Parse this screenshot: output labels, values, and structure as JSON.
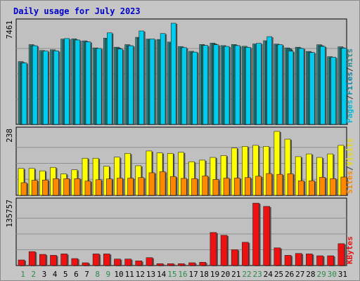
{
  "chart_data": {
    "type": "bar",
    "title": "Daily usage for July 2023",
    "categories": [
      "1",
      "2",
      "3",
      "4",
      "5",
      "6",
      "7",
      "8",
      "9",
      "10",
      "11",
      "12",
      "13",
      "14",
      "15",
      "16",
      "17",
      "18",
      "19",
      "20",
      "21",
      "22",
      "23",
      "24",
      "25",
      "26",
      "27",
      "28",
      "29",
      "30",
      "31"
    ],
    "weekend_days": [
      "1",
      "2",
      "8",
      "9",
      "15",
      "16",
      "22",
      "23",
      "29",
      "30"
    ],
    "panels": [
      {
        "name": "pages-files-hits",
        "ymax_label": "7461",
        "ylim": [
          0,
          7461
        ],
        "legend": [
          "Pages",
          "/",
          "Files",
          "/",
          "Hits"
        ],
        "series": [
          {
            "name": "Pages",
            "values": [
              4630,
              5880,
              5450,
              5500,
              6290,
              6310,
              6160,
              5640,
              6360,
              5690,
              5880,
              6420,
              6290,
              6260,
              6070,
              5740,
              5390,
              5890,
              5990,
              5810,
              5890,
              5760,
              5930,
              6170,
              5920,
              5640,
              5690,
              5380,
              5870,
              4990,
              5720
            ],
            "color": "#2e8b8b"
          },
          {
            "name": "Files",
            "values": [
              4550,
              5800,
              5350,
              5410,
              6210,
              6230,
              6080,
              5560,
              6300,
              5620,
              5800,
              6350,
              6220,
              6180,
              5990,
              5650,
              5310,
              5820,
              5920,
              5730,
              5820,
              5680,
              5860,
              6090,
              5850,
              5570,
              5610,
              5310,
              5800,
              4910,
              5640
            ],
            "color": "#1a6a6a"
          },
          {
            "name": "Hits",
            "values": [
              4530,
              5800,
              5410,
              5420,
              6330,
              6220,
              6080,
              5600,
              6750,
              5550,
              5800,
              6890,
              6300,
              6700,
              7461,
              5660,
              5330,
              5820,
              5870,
              5750,
              5810,
              5680,
              5980,
              6470,
              5880,
              5400,
              5600,
              5300,
              5750,
              4950,
              5620
            ],
            "color": "#00ccee"
          }
        ]
      },
      {
        "name": "sites-visits",
        "ymax_label": "238",
        "ylim": [
          0,
          238
        ],
        "legend": [
          "Sites",
          "/",
          "Visits"
        ],
        "series": [
          {
            "name": "Visits",
            "values": [
              100,
              100,
              91,
              104,
              80,
              95,
              138,
              138,
              108,
              142,
              156,
              110,
              165,
              158,
              156,
              160,
              125,
              131,
              141,
              148,
              176,
              182,
              186,
              182,
              238,
              209,
              144,
              154,
              141,
              154,
              186
            ],
            "color": "#ffff00"
          },
          {
            "name": "Sites",
            "values": [
              47,
              56,
              57,
              62,
              62,
              62,
              53,
              58,
              61,
              64,
              64,
              66,
              84,
              88,
              70,
              63,
              62,
              72,
              59,
              64,
              64,
              66,
              71,
              81,
              78,
              80,
              54,
              54,
              67,
              62,
              68
            ],
            "color": "#ff8800"
          }
        ]
      },
      {
        "name": "kbytes",
        "ymax_label": "135757",
        "ylim": [
          0,
          135757
        ],
        "legend": [
          "KBytes"
        ],
        "series": [
          {
            "name": "KBytes",
            "values": [
              12000,
              30000,
              24000,
              22000,
              25000,
              15000,
              6000,
              25000,
              25000,
              14000,
              14000,
              10000,
              17000,
              4000,
              4000,
              4000,
              6000,
              7000,
              71000,
              65000,
              34000,
              50000,
              134000,
              127000,
              38000,
              22000,
              26000,
              25000,
              21000,
              21000,
              47000
            ],
            "color": "#ee1111"
          }
        ]
      }
    ]
  }
}
